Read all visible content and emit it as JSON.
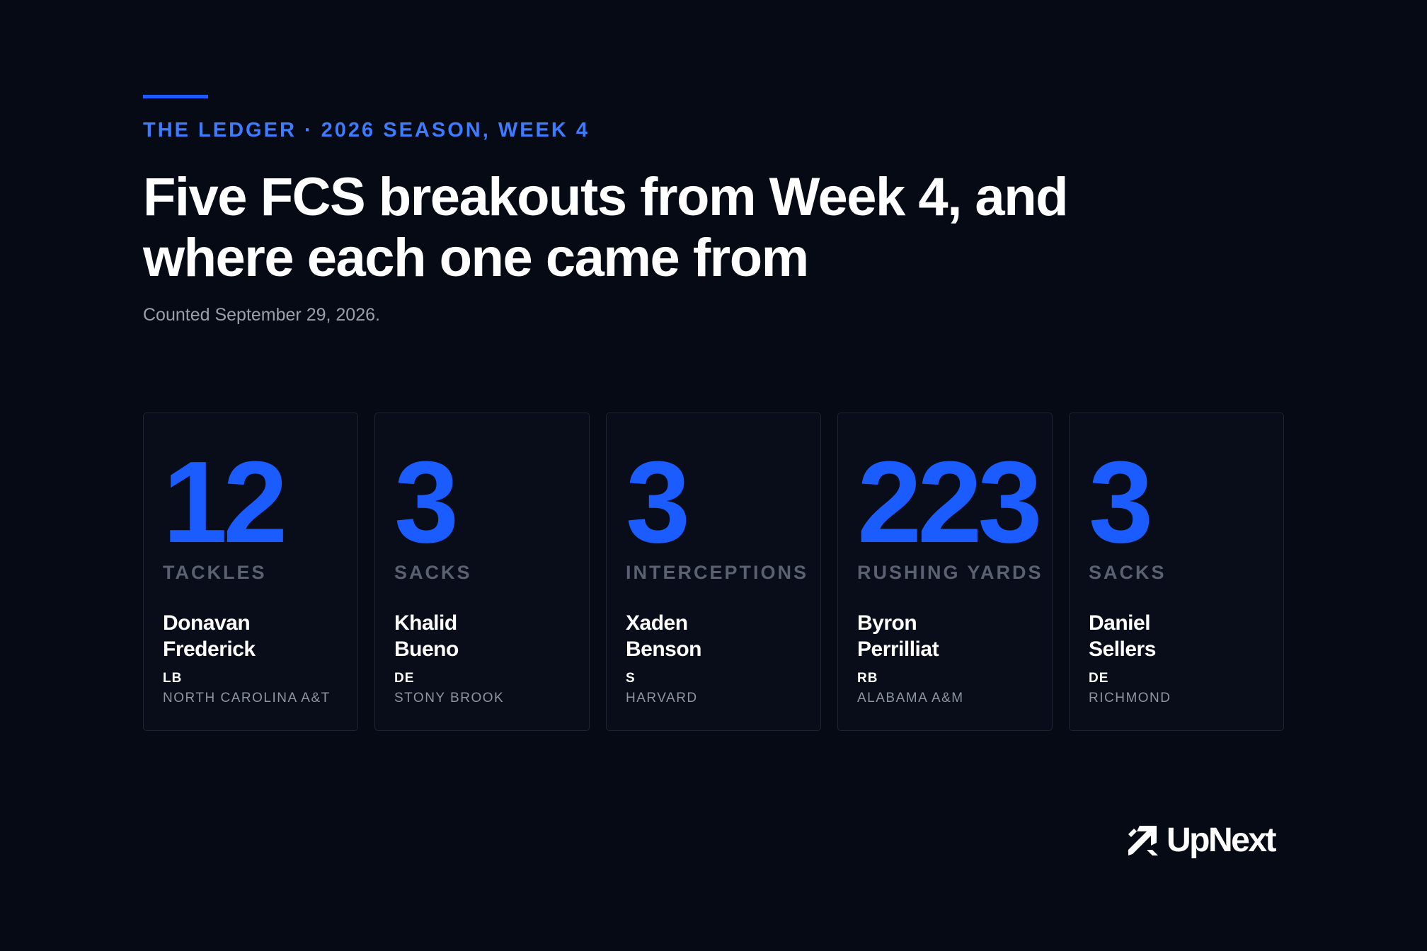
{
  "header": {
    "eyebrow": "THE LEDGER · 2026 SEASON, WEEK 4",
    "headline_line1": "Five FCS breakouts from Week 4, and",
    "headline_line2": "where each one came from",
    "dateline": "Counted September 29, 2026."
  },
  "cards": [
    {
      "value": "12",
      "stat": "TACKLES",
      "first_name": "Donavan",
      "last_name": "Frederick",
      "position": "LB",
      "school": "NORTH CAROLINA A&T"
    },
    {
      "value": "3",
      "stat": "SACKS",
      "first_name": "Khalid",
      "last_name": "Bueno",
      "position": "DE",
      "school": "STONY BROOK"
    },
    {
      "value": "3",
      "stat": "INTERCEPTIONS",
      "first_name": "Xaden",
      "last_name": "Benson",
      "position": "S",
      "school": "HARVARD"
    },
    {
      "value": "223",
      "stat": "RUSHING YARDS",
      "first_name": "Byron",
      "last_name": "Perrilliat",
      "position": "RB",
      "school": "ALABAMA A&M"
    },
    {
      "value": "3",
      "stat": "SACKS",
      "first_name": "Daniel",
      "last_name": "Sellers",
      "position": "DE",
      "school": "RICHMOND"
    }
  ],
  "brand": {
    "name": "UpNext",
    "icon": "upnext-arrow-logo-icon"
  },
  "colors": {
    "background": "#050a15",
    "accent": "#1a5cff",
    "eyebrow": "#3d7bff",
    "muted": "#5b6170"
  }
}
